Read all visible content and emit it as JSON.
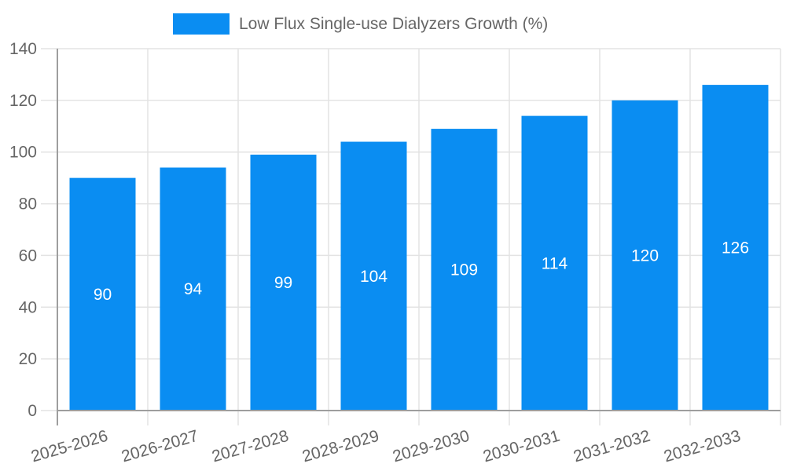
{
  "chart_data": {
    "type": "bar",
    "title": "Low Flux Single-use Dialyzers Growth (%)",
    "categories": [
      "2025-2026",
      "2026-2027",
      "2027-2028",
      "2028-2029",
      "2029-2030",
      "2030-2031",
      "2031-2032",
      "2032-2033"
    ],
    "values": [
      90,
      94,
      99,
      104,
      109,
      114,
      120,
      126
    ],
    "xlabel": "",
    "ylabel": "",
    "ylim": [
      0,
      140
    ],
    "ytick_step": 20,
    "ytick_labels": [
      "0",
      "20",
      "40",
      "60",
      "80",
      "100",
      "120",
      "140"
    ],
    "grid": true,
    "legend_position": "top",
    "x_label_rotation_deg": -16,
    "colors": {
      "bar": "#0a8df2",
      "value_label": "#ffffff",
      "axis_text": "#666666",
      "grid_line": "#e3e3e3",
      "axis_line": "#9e9e9e"
    }
  }
}
